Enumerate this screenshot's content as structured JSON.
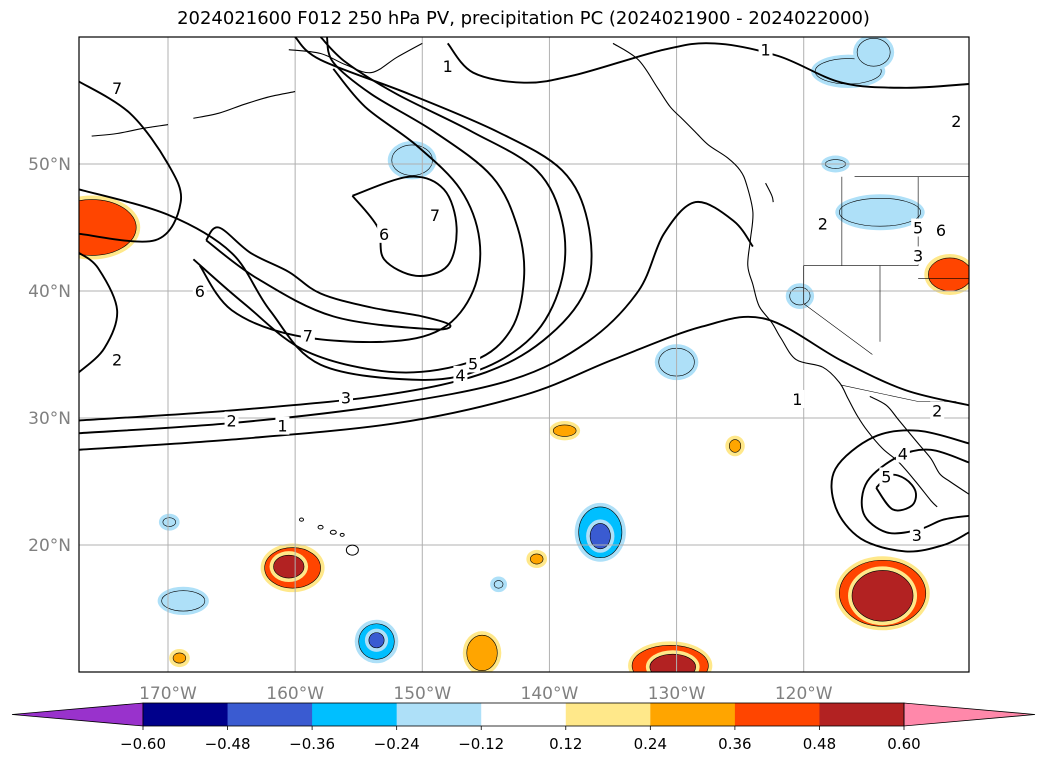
{
  "chart_data": {
    "type": "contour_map",
    "title": "2024021600 F012 250 hPa PV, precipitation PC (2024021900 - 2024022000)",
    "projection": "PlateCarree",
    "extent": {
      "lon": [
        -177,
        -107
      ],
      "lat": [
        10,
        60
      ]
    },
    "grid": true,
    "lon_ticks": [
      {
        "value": -170,
        "label": "170°W"
      },
      {
        "value": -160,
        "label": "160°W"
      },
      {
        "value": -150,
        "label": "150°W"
      },
      {
        "value": -140,
        "label": "140°W"
      },
      {
        "value": -130,
        "label": "130°W"
      },
      {
        "value": -120,
        "label": "120°W"
      }
    ],
    "lat_ticks": [
      {
        "value": 50,
        "label": "50°N"
      },
      {
        "value": 40,
        "label": "40°N"
      },
      {
        "value": 30,
        "label": "30°N"
      },
      {
        "value": 20,
        "label": "20°N"
      }
    ],
    "contour_series": "250 hPa PV",
    "contours": [
      {
        "level": 1,
        "points": [
          [
            -177,
            27.5
          ],
          [
            -165,
            28.3
          ],
          [
            -152,
            29.6
          ],
          [
            -142,
            31.8
          ],
          [
            -135,
            34.6
          ],
          [
            -128,
            37.2
          ],
          [
            -123,
            37.8
          ],
          [
            -117,
            34.5
          ],
          [
            -112,
            32.2
          ],
          [
            -107,
            31.0
          ]
        ]
      },
      {
        "level": 1,
        "points": [
          [
            -148,
            59.5
          ],
          [
            -146,
            57.2
          ],
          [
            -142,
            56.4
          ],
          [
            -138,
            57.0
          ],
          [
            -131,
            59.0
          ],
          [
            -127,
            59.5
          ],
          [
            -122,
            58.5
          ],
          [
            -117,
            56.4
          ],
          [
            -112,
            56.0
          ],
          [
            -107,
            56.3
          ]
        ]
      },
      {
        "level": 2,
        "points": [
          [
            -177,
            28.8
          ],
          [
            -165,
            29.6
          ],
          [
            -153,
            31.0
          ],
          [
            -143,
            33.0
          ],
          [
            -137,
            36.0
          ],
          [
            -133,
            40.0
          ],
          [
            -131,
            44.5
          ],
          [
            -128.5,
            47.0
          ],
          [
            -125.5,
            45.5
          ],
          [
            -124,
            43.5
          ]
        ]
      },
      {
        "level": 2,
        "points": [
          [
            -177,
            33.6
          ],
          [
            -175,
            35.5
          ],
          [
            -174,
            38.5
          ],
          [
            -175.5,
            41.8
          ],
          [
            -177,
            43.0
          ]
        ]
      },
      {
        "level": 3,
        "points": [
          [
            -177,
            29.8
          ],
          [
            -165,
            30.6
          ],
          [
            -153,
            31.8
          ],
          [
            -145,
            33.6
          ],
          [
            -140,
            36.5
          ],
          [
            -137,
            40.5
          ],
          [
            -137,
            45.5
          ],
          [
            -139,
            49.5
          ],
          [
            -144,
            52.5
          ],
          [
            -151,
            55.5
          ],
          [
            -158,
            58.2
          ],
          [
            -160,
            60
          ]
        ]
      },
      {
        "level": 3,
        "points": [
          [
            -107,
            28.0
          ],
          [
            -111,
            29.0
          ],
          [
            -114.5,
            28.5
          ],
          [
            -117.5,
            26.0
          ],
          [
            -117.5,
            23.0
          ],
          [
            -115.5,
            20.5
          ],
          [
            -112,
            19.5
          ],
          [
            -109,
            20.0
          ],
          [
            -107,
            21.0
          ]
        ]
      },
      {
        "level": 4,
        "points": [
          [
            -177,
            48.0
          ],
          [
            -170,
            46.0
          ],
          [
            -165,
            43.0
          ],
          [
            -162,
            38.5
          ],
          [
            -158,
            34.2
          ],
          [
            -150,
            33.0
          ],
          [
            -145,
            34.0
          ],
          [
            -141,
            36.8
          ],
          [
            -139,
            41.0
          ],
          [
            -139,
            45.5
          ],
          [
            -141,
            49.5
          ],
          [
            -146,
            52.5
          ],
          [
            -152,
            55.5
          ],
          [
            -156,
            58.0
          ],
          [
            -158,
            60
          ]
        ]
      },
      {
        "level": 4,
        "points": [
          [
            -107,
            26.5
          ],
          [
            -110,
            27.5
          ],
          [
            -112.5,
            27.0
          ],
          [
            -115,
            25.0
          ],
          [
            -115.3,
            22.5
          ],
          [
            -113.5,
            21.0
          ],
          [
            -111,
            21.2
          ],
          [
            -109,
            22.0
          ],
          [
            -107,
            22.3
          ]
        ]
      },
      {
        "level": 5,
        "points": [
          [
            -168,
            42.5
          ],
          [
            -164,
            39.0
          ],
          [
            -159,
            35.2
          ],
          [
            -152,
            33.6
          ],
          [
            -146,
            34.5
          ],
          [
            -143,
            37.0
          ],
          [
            -142,
            41.0
          ],
          [
            -142.5,
            45.0
          ],
          [
            -144.5,
            49.0
          ],
          [
            -149,
            52.5
          ],
          [
            -154,
            55.5
          ],
          [
            -157,
            58.0
          ],
          [
            -157.5,
            60
          ]
        ]
      },
      {
        "level": 5,
        "points": [
          [
            -114.3,
            24.5
          ],
          [
            -113.2,
            25.5
          ],
          [
            -112,
            25.2
          ],
          [
            -111.2,
            24.2
          ],
          [
            -111.5,
            23.1
          ],
          [
            -113,
            22.8
          ],
          [
            -114.3,
            24.5
          ]
        ]
      },
      {
        "level": 6,
        "points": [
          [
            -167.5,
            42.0
          ],
          [
            -165,
            38.5
          ],
          [
            -160,
            36.5
          ],
          [
            -153,
            36.0
          ],
          [
            -148.5,
            37.0
          ],
          [
            -146,
            40.0
          ],
          [
            -145.5,
            44.0
          ],
          [
            -147,
            48.0
          ],
          [
            -150.5,
            51.5
          ],
          [
            -154.5,
            54.5
          ],
          [
            -157,
            57.5
          ]
        ]
      },
      {
        "level": 6,
        "points": [
          [
            -155.5,
            47.5
          ],
          [
            -153.5,
            45.0
          ],
          [
            -153,
            42.5
          ],
          [
            -150.5,
            41.2
          ],
          [
            -148,
            42.0
          ],
          [
            -147.3,
            45.0
          ],
          [
            -148.3,
            48.0
          ],
          [
            -151,
            49.0
          ],
          [
            -155.5,
            47.5
          ]
        ]
      },
      {
        "level": 7,
        "points": [
          [
            -167,
            44.0
          ],
          [
            -163,
            41.0
          ],
          [
            -157,
            38.0
          ],
          [
            -149.5,
            37.0
          ],
          [
            -147.8,
            37.3
          ],
          [
            -150,
            38.0
          ],
          [
            -154,
            38.7
          ],
          [
            -158,
            39.8
          ],
          [
            -160.5,
            41.5
          ],
          [
            -163.5,
            43.0
          ],
          [
            -166,
            45.0
          ],
          [
            -167,
            44.0
          ]
        ]
      },
      {
        "level": 7,
        "points": [
          [
            -177,
            56.5
          ],
          [
            -173,
            54.0
          ],
          [
            -170,
            50.0
          ],
          [
            -169,
            47.0
          ],
          [
            -171,
            44.0
          ],
          [
            -177,
            44.5
          ]
        ]
      }
    ],
    "contour_labels": [
      {
        "text": "1",
        "lon": -161,
        "lat": 29.4
      },
      {
        "text": "2",
        "lon": -165,
        "lat": 29.8
      },
      {
        "text": "3",
        "lon": -156,
        "lat": 31.6
      },
      {
        "text": "4",
        "lon": -147,
        "lat": 33.4
      },
      {
        "text": "5",
        "lon": -146,
        "lat": 34.3
      },
      {
        "text": "7",
        "lon": -159,
        "lat": 36.5
      },
      {
        "text": "6",
        "lon": -167.5,
        "lat": 40.0
      },
      {
        "text": "2",
        "lon": -174,
        "lat": 34.6
      },
      {
        "text": "6",
        "lon": -153,
        "lat": 44.5
      },
      {
        "text": "7",
        "lon": -149,
        "lat": 46.0
      },
      {
        "text": "7",
        "lon": -174,
        "lat": 56.0
      },
      {
        "text": "1",
        "lon": -148,
        "lat": 57.7
      },
      {
        "text": "1",
        "lon": -123,
        "lat": 59.0
      },
      {
        "text": "2",
        "lon": -118.5,
        "lat": 45.3
      },
      {
        "text": "2",
        "lon": -108,
        "lat": 53.4
      },
      {
        "text": "5",
        "lon": -111,
        "lat": 45.0
      },
      {
        "text": "6",
        "lon": -109.2,
        "lat": 44.8
      },
      {
        "text": "3",
        "lon": -111,
        "lat": 42.8
      },
      {
        "text": "1",
        "lon": -120.5,
        "lat": 31.5
      },
      {
        "text": "2",
        "lon": -109.5,
        "lat": 30.6
      },
      {
        "text": "4",
        "lon": -112.2,
        "lat": 27.2
      },
      {
        "text": "5",
        "lon": -113.5,
        "lat": 25.4
      },
      {
        "text": "3",
        "lon": -111.1,
        "lat": 20.8
      }
    ],
    "fill_series": "precipitation PC",
    "fills": [
      {
        "value": 0.36,
        "lon": -176,
        "lat": 45.0,
        "rx": 3.5,
        "ry": 2.2
      },
      {
        "value": -0.24,
        "lon": -150.8,
        "lat": 50.3,
        "rx": 1.6,
        "ry": 1.2
      },
      {
        "value": -0.24,
        "lon": -114.0,
        "lat": 46.2,
        "rx": 3.2,
        "ry": 1.1
      },
      {
        "value": -0.24,
        "lon": -116.5,
        "lat": 57.3,
        "rx": 2.6,
        "ry": 1.0
      },
      {
        "value": -0.24,
        "lon": -114.5,
        "lat": 58.8,
        "rx": 1.3,
        "ry": 1.1
      },
      {
        "value": 0.36,
        "lon": -108.5,
        "lat": 41.3,
        "rx": 1.7,
        "ry": 1.3
      },
      {
        "value": -0.24,
        "lon": -120.3,
        "lat": 39.6,
        "rx": 0.8,
        "ry": 0.7
      },
      {
        "value": -0.24,
        "lon": -130.0,
        "lat": 34.4,
        "rx": 1.4,
        "ry": 1.1
      },
      {
        "value": -0.36,
        "lon": -136.0,
        "lat": 21.0,
        "rx": 1.7,
        "ry": 2.0
      },
      {
        "value": -0.48,
        "lon": -136.0,
        "lat": 20.7,
        "rx": 0.8,
        "ry": 1.0
      },
      {
        "value": 0.36,
        "lon": -160.2,
        "lat": 18.2,
        "rx": 2.2,
        "ry": 1.6
      },
      {
        "value": 0.48,
        "lon": -160.5,
        "lat": 18.3,
        "rx": 1.2,
        "ry": 0.9
      },
      {
        "value": -0.24,
        "lon": -168.8,
        "lat": 15.6,
        "rx": 1.7,
        "ry": 0.8
      },
      {
        "value": -0.36,
        "lon": -153.6,
        "lat": 12.4,
        "rx": 1.4,
        "ry": 1.4
      },
      {
        "value": -0.48,
        "lon": -153.6,
        "lat": 12.5,
        "rx": 0.6,
        "ry": 0.6
      },
      {
        "value": 0.24,
        "lon": -145.3,
        "lat": 11.5,
        "rx": 1.2,
        "ry": 1.4
      },
      {
        "value": 0.36,
        "lon": -130.5,
        "lat": 10.5,
        "rx": 3.0,
        "ry": 1.6
      },
      {
        "value": 0.48,
        "lon": -130.3,
        "lat": 10.4,
        "rx": 1.8,
        "ry": 1.0
      },
      {
        "value": 0.36,
        "lon": -113.8,
        "lat": 16.2,
        "rx": 3.4,
        "ry": 2.6
      },
      {
        "value": 0.48,
        "lon": -113.8,
        "lat": 16.0,
        "rx": 2.4,
        "ry": 2.0
      },
      {
        "value": 0.24,
        "lon": -138.8,
        "lat": 29.0,
        "rx": 0.9,
        "ry": 0.45
      },
      {
        "value": 0.24,
        "lon": -125.4,
        "lat": 27.8,
        "rx": 0.45,
        "ry": 0.5
      },
      {
        "value": 0.24,
        "lon": -141.0,
        "lat": 18.9,
        "rx": 0.5,
        "ry": 0.4
      },
      {
        "value": 0.24,
        "lon": -169.1,
        "lat": 11.1,
        "rx": 0.5,
        "ry": 0.4
      },
      {
        "value": -0.24,
        "lon": -169.9,
        "lat": 21.8,
        "rx": 0.5,
        "ry": 0.35
      },
      {
        "value": -0.24,
        "lon": -144.0,
        "lat": 16.9,
        "rx": 0.35,
        "ry": 0.3
      },
      {
        "value": -0.24,
        "lon": -117.5,
        "lat": 50.0,
        "rx": 0.8,
        "ry": 0.35
      }
    ],
    "colorbar": {
      "levels": [
        -0.6,
        -0.48,
        -0.36,
        -0.24,
        -0.12,
        0.12,
        0.24,
        0.36,
        0.48,
        0.6
      ],
      "labels": [
        "−0.60",
        "−0.48",
        "−0.36",
        "−0.24",
        "−0.12",
        "0.12",
        "0.24",
        "0.36",
        "0.48",
        "0.60"
      ],
      "colors": [
        "#9932cc",
        "#00008b",
        "#3a5bd1",
        "#00bfff",
        "#aee0f8",
        "#ffffff",
        "#ffe88a",
        "#ffa500",
        "#ff4500",
        "#b22222",
        "#ff88aa"
      ],
      "extend": "both"
    },
    "coastline_color": "#000000",
    "gridline_color": "#b0b0b0",
    "tick_label_color": "#808080"
  }
}
